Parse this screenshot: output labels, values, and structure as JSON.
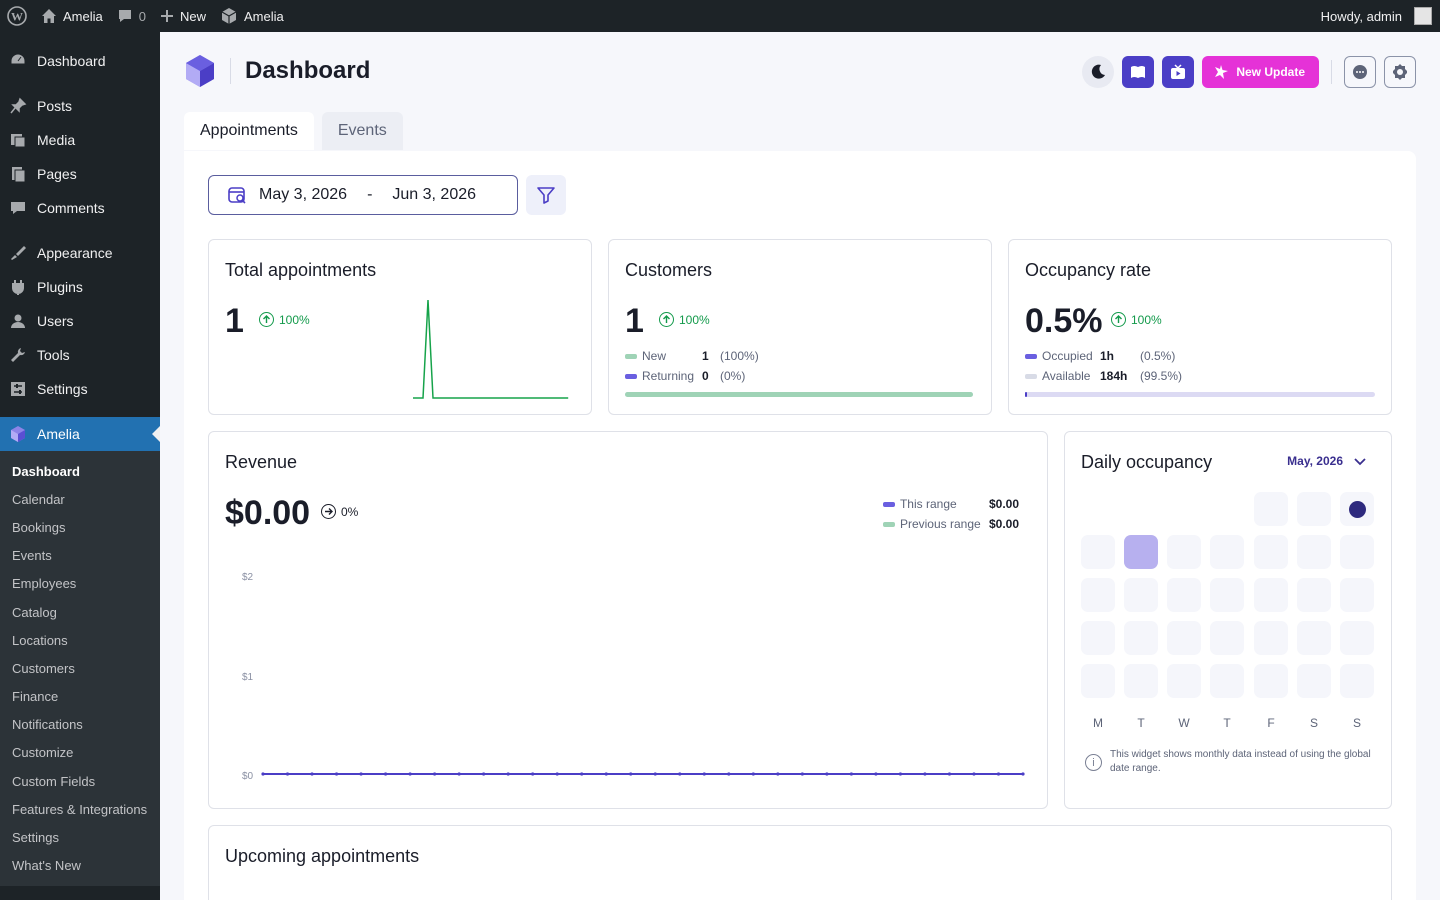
{
  "admin_bar": {
    "site_name": "Amelia",
    "comments_count": "0",
    "new_label": "New",
    "plugin_label": "Amelia",
    "greeting": "Howdy, admin"
  },
  "sidebar": {
    "items": [
      {
        "label": "Dashboard",
        "icon": "dashboard-icon"
      },
      {
        "label": "Posts",
        "icon": "pin-icon"
      },
      {
        "label": "Media",
        "icon": "media-icon"
      },
      {
        "label": "Pages",
        "icon": "pages-icon"
      },
      {
        "label": "Comments",
        "icon": "comment-icon"
      },
      {
        "label": "Appearance",
        "icon": "brush-icon"
      },
      {
        "label": "Plugins",
        "icon": "plug-icon"
      },
      {
        "label": "Users",
        "icon": "user-icon"
      },
      {
        "label": "Tools",
        "icon": "wrench-icon"
      },
      {
        "label": "Settings",
        "icon": "settings-icon"
      }
    ],
    "current": {
      "label": "Amelia",
      "icon": "amelia-icon"
    },
    "submenu": [
      "Dashboard",
      "Calendar",
      "Bookings",
      "Events",
      "Employees",
      "Catalog",
      "Locations",
      "Customers",
      "Finance",
      "Notifications",
      "Customize",
      "Custom Fields",
      "Features & Integrations",
      "Settings",
      "What's New"
    ]
  },
  "header": {
    "title": "Dashboard",
    "update_label": "New Update"
  },
  "tabs": [
    "Appointments",
    "Events"
  ],
  "filters": {
    "date_from": "May 3, 2026",
    "date_sep": "-",
    "date_to": "Jun 3, 2026"
  },
  "cards": {
    "total": {
      "title": "Total appointments",
      "value": "1",
      "change": "100%"
    },
    "customers": {
      "title": "Customers",
      "value": "1",
      "change": "100%",
      "new_label": "New",
      "new_value": "1",
      "new_pct": "(100%)",
      "returning_label": "Returning",
      "returning_value": "0",
      "returning_pct": "(0%)",
      "new_share": 1.0
    },
    "occupancy": {
      "title": "Occupancy rate",
      "value": "0.5%",
      "change": "100%",
      "occupied_label": "Occupied",
      "occupied_value": "1h",
      "occupied_pct": "(0.5%)",
      "available_label": "Available",
      "available_value": "184h",
      "available_pct": "(99.5%)",
      "occupied_share": 0.005
    }
  },
  "revenue": {
    "title": "Revenue",
    "value": "$0.00",
    "change": "0%",
    "this_range_label": "This range",
    "this_range_value": "$0.00",
    "prev_range_label": "Previous range",
    "prev_range_value": "$0.00",
    "y_ticks": [
      "$2",
      "$1",
      "$0"
    ]
  },
  "daily_occupancy": {
    "title": "Daily occupancy",
    "month": "May, 2026",
    "weekdays": [
      "M",
      "T",
      "W",
      "T",
      "F",
      "S",
      "S"
    ],
    "note": "This widget shows monthly data instead of using the global date range."
  },
  "upcoming": {
    "title": "Upcoming appointments"
  },
  "colors": {
    "accent": "#4b3ec6",
    "green": "#139a4b",
    "pink": "#e532d7",
    "wp_blue": "#2271b1"
  },
  "chart_data": [
    {
      "type": "line",
      "title": "Total appointments",
      "series": [
        {
          "values": [
            0,
            0,
            0,
            1,
            0,
            0,
            0,
            0,
            0,
            0,
            0,
            0,
            0,
            0,
            0,
            0,
            0,
            0,
            0,
            0,
            0,
            0,
            0,
            0,
            0,
            0,
            0,
            0,
            0,
            0,
            0,
            0
          ]
        }
      ],
      "ylim": [
        0,
        1
      ]
    },
    {
      "type": "line",
      "title": "Revenue",
      "series": [
        {
          "name": "This range",
          "values": [
            0,
            0,
            0,
            0,
            0,
            0,
            0,
            0,
            0,
            0,
            0,
            0,
            0,
            0,
            0,
            0,
            0,
            0,
            0,
            0,
            0,
            0,
            0,
            0,
            0,
            0,
            0,
            0,
            0,
            0,
            0,
            0
          ]
        }
      ],
      "y_ticks": [
        "$0",
        "$1",
        "$2"
      ],
      "ylim": [
        0,
        2
      ]
    }
  ]
}
